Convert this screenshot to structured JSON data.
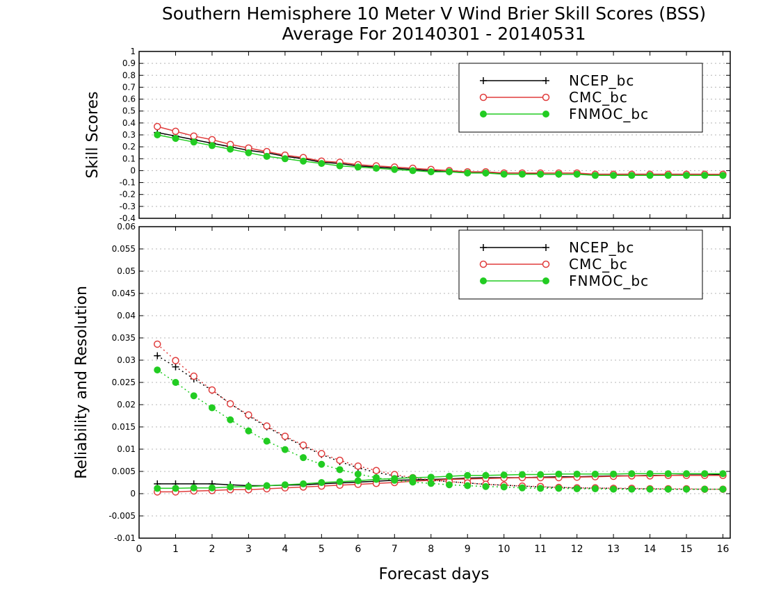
{
  "title": "Southern Hemisphere 10 Meter V Wind Brier Skill Scores (BSS)",
  "subtitle": "Average For 20140301 - 20140531",
  "xlabel": "Forecast days",
  "colors": {
    "NCEP_bc": "#000000",
    "CMC_bc": "#e03c3c",
    "FNMOC_bc": "#22cc22"
  },
  "chart_data": [
    {
      "type": "line",
      "ylabel": "Skill Scores",
      "xlim": [
        0,
        16.2
      ],
      "ylim": [
        -0.4,
        1.0
      ],
      "x_ticks": [
        "0",
        "1",
        "2",
        "3",
        "4",
        "5",
        "6",
        "7",
        "8",
        "9",
        "10",
        "11",
        "12",
        "13",
        "14",
        "15",
        "16"
      ],
      "y_ticks": [
        "-0.4",
        "-0.3",
        "-0.2",
        "-0.1",
        "0",
        "0.1",
        "0.2",
        "0.3",
        "0.4",
        "0.5",
        "0.6",
        "0.7",
        "0.8",
        "0.9",
        "1"
      ],
      "grid": true,
      "legend": "top-right",
      "x": [
        0.5,
        1,
        1.5,
        2,
        2.5,
        3,
        3.5,
        4,
        4.5,
        5,
        5.5,
        6,
        6.5,
        7,
        7.5,
        8,
        8.5,
        9,
        9.5,
        10,
        10.5,
        11,
        11.5,
        12,
        12.5,
        13,
        13.5,
        14,
        14.5,
        15,
        15.5,
        16
      ],
      "series": [
        {
          "name": "NCEP_bc",
          "marker": "plus",
          "style": "solid",
          "values": [
            0.32,
            0.29,
            0.26,
            0.23,
            0.2,
            0.17,
            0.15,
            0.12,
            0.1,
            0.07,
            0.06,
            0.04,
            0.03,
            0.02,
            0.01,
            0.0,
            -0.01,
            -0.01,
            -0.02,
            -0.02,
            -0.02,
            -0.03,
            -0.03,
            -0.03,
            -0.03,
            -0.03,
            -0.03,
            -0.03,
            -0.03,
            -0.03,
            -0.03,
            -0.04
          ]
        },
        {
          "name": "CMC_bc",
          "marker": "circle-open",
          "style": "solid",
          "values": [
            0.37,
            0.33,
            0.29,
            0.26,
            0.22,
            0.19,
            0.16,
            0.13,
            0.11,
            0.08,
            0.07,
            0.05,
            0.04,
            0.03,
            0.02,
            0.01,
            0.0,
            -0.01,
            -0.01,
            -0.02,
            -0.02,
            -0.02,
            -0.02,
            -0.02,
            -0.03,
            -0.03,
            -0.03,
            -0.03,
            -0.03,
            -0.03,
            -0.03,
            -0.03
          ]
        },
        {
          "name": "FNMOC_bc",
          "marker": "circle-filled",
          "style": "solid",
          "values": [
            0.3,
            0.27,
            0.24,
            0.21,
            0.18,
            0.15,
            0.12,
            0.1,
            0.08,
            0.06,
            0.04,
            0.03,
            0.02,
            0.01,
            0.0,
            -0.01,
            -0.01,
            -0.02,
            -0.02,
            -0.03,
            -0.03,
            -0.03,
            -0.03,
            -0.03,
            -0.04,
            -0.04,
            -0.04,
            -0.04,
            -0.04,
            -0.04,
            -0.04,
            -0.04
          ]
        }
      ]
    },
    {
      "type": "line",
      "ylabel": "Reliability and Resolution",
      "xlim": [
        0,
        16.2
      ],
      "ylim": [
        -0.01,
        0.06
      ],
      "x_ticks": [
        "0",
        "1",
        "2",
        "3",
        "4",
        "5",
        "6",
        "7",
        "8",
        "9",
        "10",
        "11",
        "12",
        "13",
        "14",
        "15",
        "16"
      ],
      "y_ticks": [
        "-0.01",
        "-0.005",
        "0",
        "0.005",
        "0.01",
        "0.015",
        "0.02",
        "0.025",
        "0.03",
        "0.035",
        "0.04",
        "0.045",
        "0.05",
        "0.055",
        "0.06"
      ],
      "grid": true,
      "legend": "top-right",
      "x": [
        0.5,
        1,
        1.5,
        2,
        2.5,
        3,
        3.5,
        4,
        4.5,
        5,
        5.5,
        6,
        6.5,
        7,
        7.5,
        8,
        8.5,
        9,
        9.5,
        10,
        10.5,
        11,
        11.5,
        12,
        12.5,
        13,
        13.5,
        14,
        14.5,
        15,
        15.5,
        16
      ],
      "series": [
        {
          "name": "NCEP_bc",
          "marker": "plus",
          "style": "solid",
          "values": [
            0.0022,
            0.0022,
            0.0022,
            0.0022,
            0.002,
            0.0018,
            0.0018,
            0.0019,
            0.002,
            0.0022,
            0.0024,
            0.0026,
            0.0028,
            0.003,
            0.0031,
            0.0032,
            0.0033,
            0.0035,
            0.0036,
            0.0036,
            0.0036,
            0.0037,
            0.0038,
            0.0038,
            0.0039,
            0.004,
            0.004,
            0.0041,
            0.0041,
            0.0042,
            0.0042,
            0.0043
          ]
        },
        {
          "name": "NCEP_bc",
          "marker": "plus",
          "style": "dotted",
          "values": [
            0.031,
            0.0285,
            0.0258,
            0.0232,
            0.0202,
            0.0175,
            0.015,
            0.0127,
            0.0107,
            0.0088,
            0.0072,
            0.0058,
            0.0048,
            0.004,
            0.0034,
            0.003,
            0.0027,
            0.0024,
            0.0021,
            0.0019,
            0.0017,
            0.0015,
            0.0014,
            0.0013,
            0.0012,
            0.0012,
            0.0011,
            0.0011,
            0.001,
            0.001,
            0.001,
            0.001
          ]
        },
        {
          "name": "CMC_bc",
          "marker": "circle-open",
          "style": "solid",
          "values": [
            0.0004,
            0.0004,
            0.0006,
            0.0007,
            0.0009,
            0.0009,
            0.0011,
            0.0013,
            0.0015,
            0.0017,
            0.0019,
            0.0021,
            0.0023,
            0.0025,
            0.0028,
            0.003,
            0.0032,
            0.0033,
            0.0034,
            0.0035,
            0.0036,
            0.0036,
            0.0036,
            0.0037,
            0.0038,
            0.0039,
            0.004,
            0.004,
            0.0041,
            0.0041,
            0.0041,
            0.0041
          ]
        },
        {
          "name": "CMC_bc",
          "marker": "circle-open",
          "style": "dotted",
          "values": [
            0.0336,
            0.0299,
            0.0264,
            0.0233,
            0.0202,
            0.0177,
            0.0152,
            0.0129,
            0.0109,
            0.009,
            0.0075,
            0.0062,
            0.0052,
            0.0043,
            0.0036,
            0.0031,
            0.0027,
            0.0024,
            0.0021,
            0.0019,
            0.0017,
            0.0016,
            0.0014,
            0.0013,
            0.0013,
            0.0012,
            0.0012,
            0.0011,
            0.0011,
            0.0011,
            0.001,
            0.001
          ]
        },
        {
          "name": "FNMOC_bc",
          "marker": "circle-filled",
          "style": "solid",
          "values": [
            0.0012,
            0.0012,
            0.0013,
            0.0013,
            0.0015,
            0.0016,
            0.0018,
            0.002,
            0.0022,
            0.0025,
            0.0027,
            0.0029,
            0.0032,
            0.0034,
            0.0036,
            0.0037,
            0.0039,
            0.0041,
            0.0041,
            0.0042,
            0.0043,
            0.0043,
            0.0044,
            0.0044,
            0.0044,
            0.0044,
            0.0045,
            0.0045,
            0.0045,
            0.0045,
            0.0045,
            0.0045
          ]
        },
        {
          "name": "FNMOC_bc",
          "marker": "circle-filled",
          "style": "dotted",
          "values": [
            0.0278,
            0.025,
            0.022,
            0.0193,
            0.0166,
            0.0141,
            0.0118,
            0.0099,
            0.0081,
            0.0066,
            0.0054,
            0.0044,
            0.0036,
            0.003,
            0.0026,
            0.0023,
            0.002,
            0.0018,
            0.0016,
            0.0015,
            0.0013,
            0.0012,
            0.0012,
            0.0011,
            0.0011,
            0.001,
            0.001,
            0.001,
            0.001,
            0.001,
            0.001,
            0.001
          ]
        }
      ]
    }
  ]
}
